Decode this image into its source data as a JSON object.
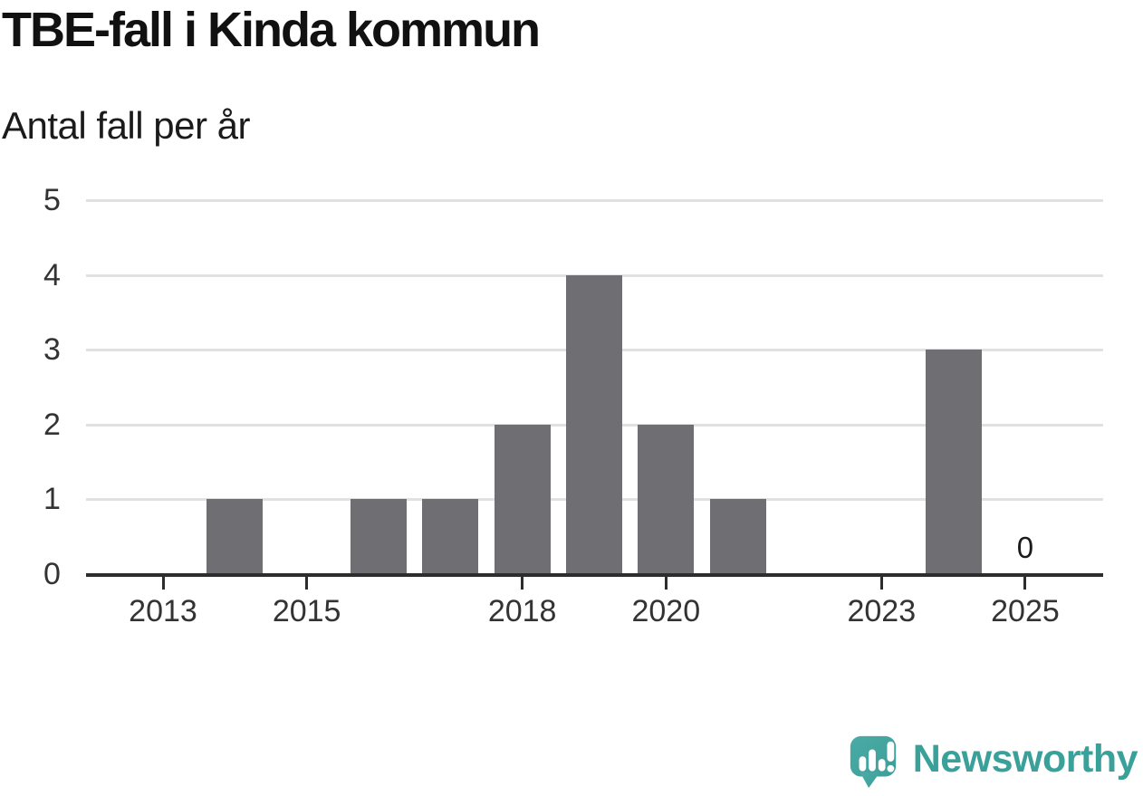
{
  "header": {
    "title": "TBE-fall i Kinda kommun",
    "subtitle": "Antal fall per år"
  },
  "chart_data": {
    "type": "bar",
    "title": "TBE-fall i Kinda kommun",
    "subtitle": "Antal fall per år",
    "categories": [
      "2013",
      "2014",
      "2015",
      "2016",
      "2017",
      "2018",
      "2019",
      "2020",
      "2021",
      "2022",
      "2023",
      "2024",
      "2025"
    ],
    "values": [
      0,
      1,
      0,
      1,
      1,
      2,
      4,
      2,
      1,
      0,
      0,
      3,
      0
    ],
    "xlabel": "",
    "ylabel": "Antal fall per år",
    "ylim": [
      0,
      5
    ],
    "yticks": [
      "0",
      "1",
      "2",
      "3",
      "4",
      "5"
    ],
    "labeled_xticks": [
      "2013",
      "2015",
      "2018",
      "2020",
      "2023",
      "2025"
    ],
    "annotations": [
      {
        "x": "2025",
        "text": "0"
      }
    ],
    "grid": "horizontal",
    "legend": "none",
    "colors": {
      "bar": "#6e6e73",
      "gridline": "#e1e1e1",
      "axis": "#2d2d2d",
      "tick_label": "#333333"
    }
  },
  "footer": {
    "logo_text": "Newsworthy",
    "logo_color": "#39a09a",
    "logo_icon": "newsworthy-speech-bubble-chart-icon",
    "logo_icon_color": "#45a8a2"
  }
}
